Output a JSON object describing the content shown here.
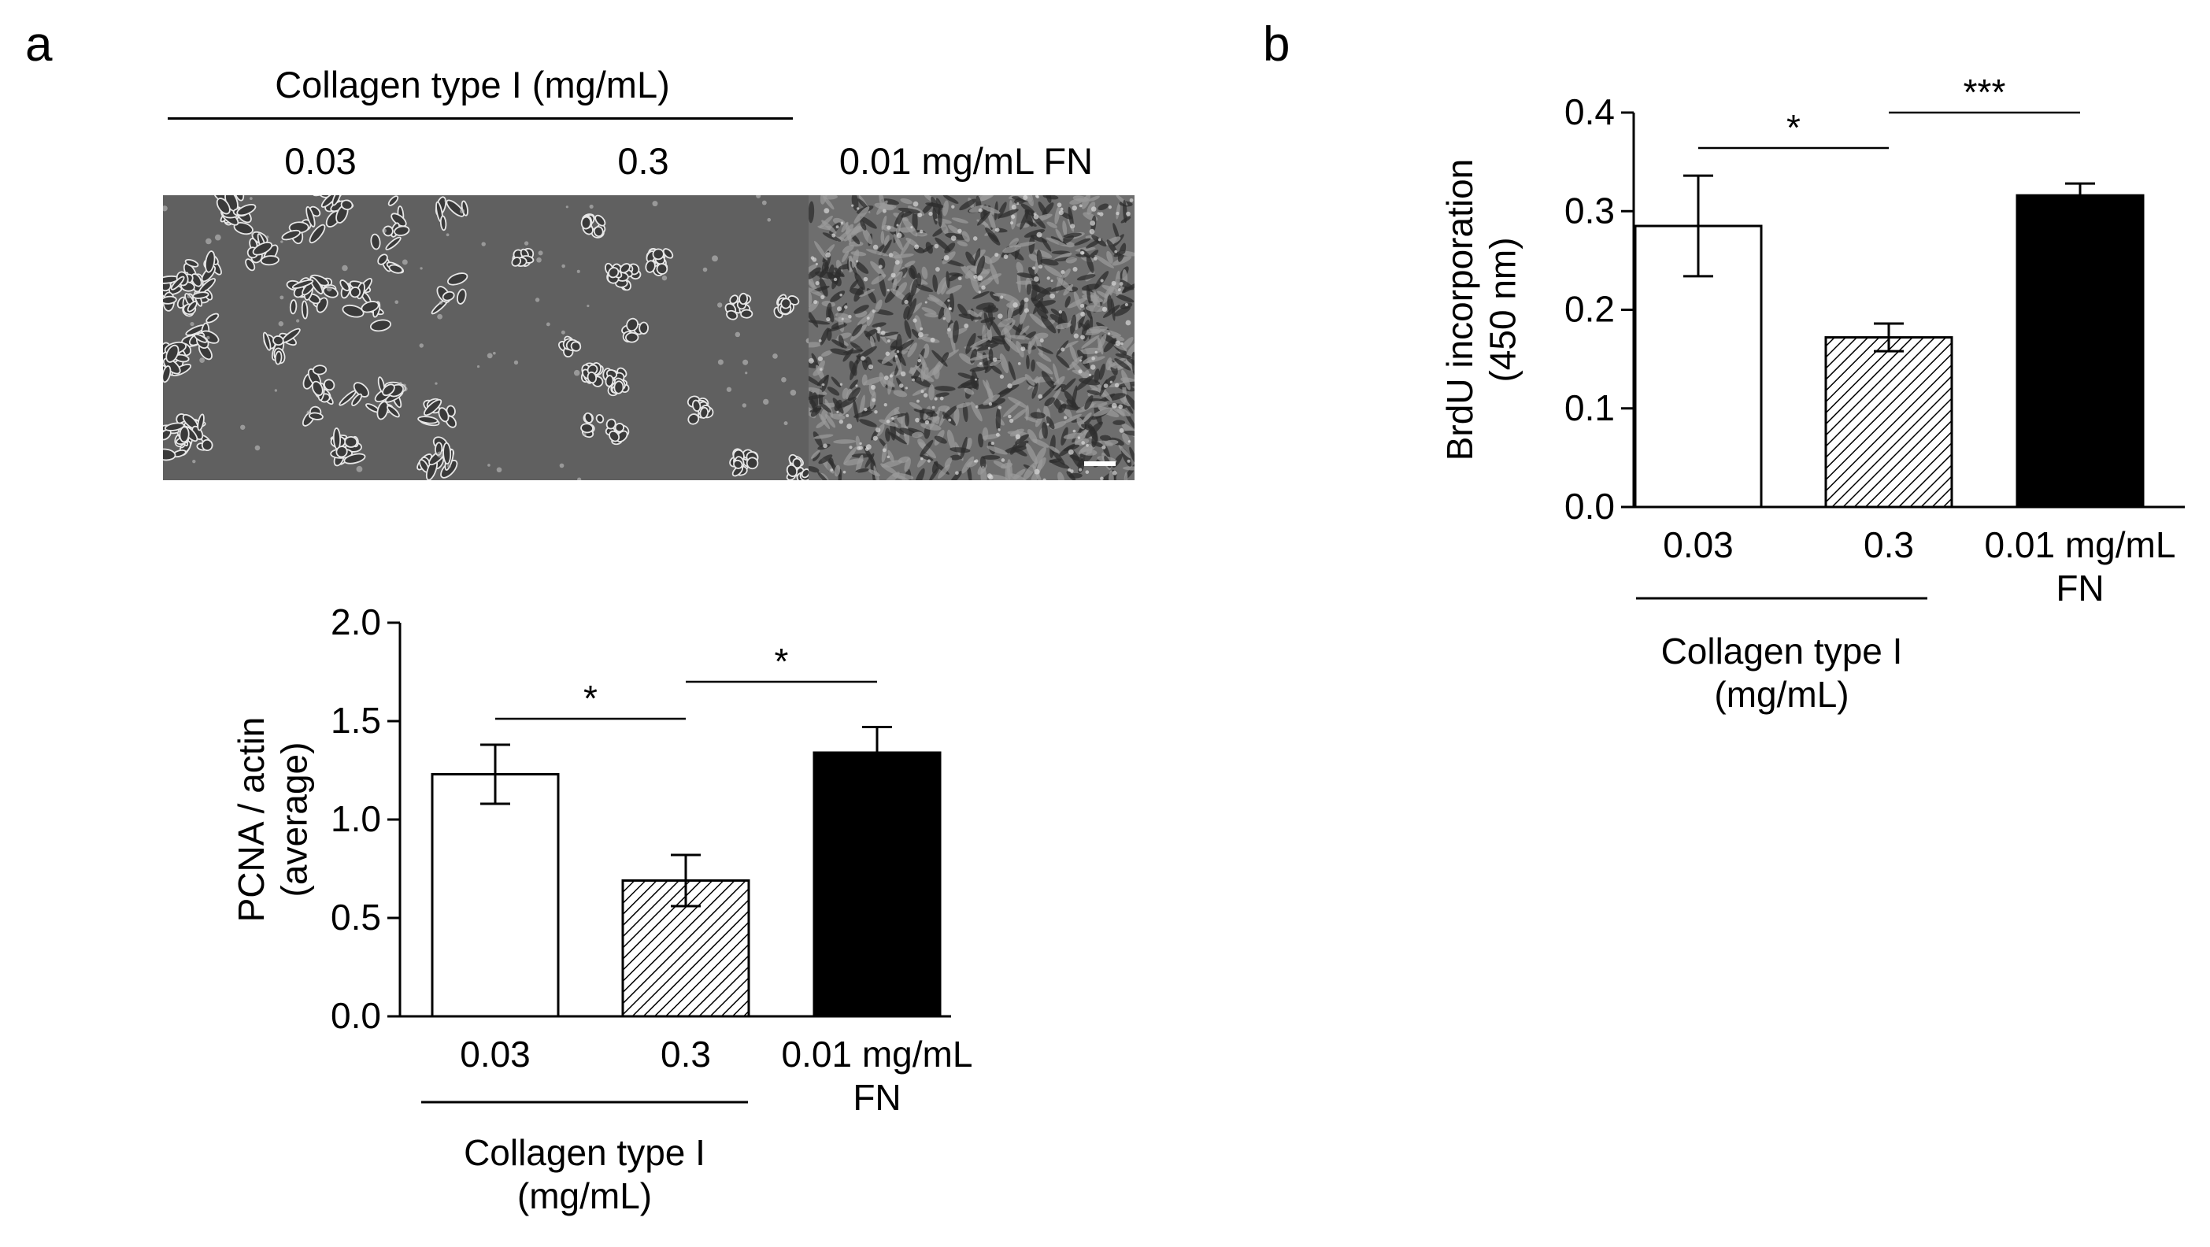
{
  "panel_a": {
    "letter": "a",
    "header": "Collagen type I (mg/mL)",
    "image_labels": [
      "0.03",
      "0.3",
      "0.01 mg/mL FN"
    ],
    "images": [
      {
        "name": "micrograph-collagen-0.03",
        "content": "sparse cell clusters"
      },
      {
        "name": "micrograph-collagen-0.3",
        "content": "small rounded cell clusters"
      },
      {
        "name": "micrograph-fn-0.01",
        "content": "dense confluent cell monolayer with scale bar"
      }
    ]
  },
  "panel_b": {
    "letter": "b"
  },
  "colors": {
    "bar_open": "#ffffff",
    "bar_solid": "#000000",
    "stroke": "#000000",
    "hatch": "#000000"
  },
  "chart_data": [
    {
      "id": "pcna",
      "type": "bar",
      "categories": [
        "0.03",
        "0.3",
        "0.01 mg/mL FN"
      ],
      "category_label_lines": [
        [
          "0.03"
        ],
        [
          "0.3"
        ],
        [
          "0.01 mg/mL",
          "FN"
        ]
      ],
      "values": [
        1.23,
        0.69,
        1.34
      ],
      "errors": [
        0.15,
        0.13,
        0.13
      ],
      "fills": [
        "open",
        "hatched",
        "solid"
      ],
      "ylabel_lines": [
        "PCNA / actin",
        "(average)"
      ],
      "ylim": [
        0,
        2.0
      ],
      "yticks": [
        "0.0",
        "0.5",
        "1.0",
        "1.5",
        "2.0"
      ],
      "group_label_lines": [
        "Collagen type I",
        "(mg/mL)"
      ],
      "significance": [
        {
          "from": 0,
          "to": 1,
          "label": "*"
        },
        {
          "from": 1,
          "to": 2,
          "label": "*"
        }
      ]
    },
    {
      "id": "brdu",
      "type": "bar",
      "categories": [
        "0.03",
        "0.3",
        "0.01 mg/mL FN"
      ],
      "category_label_lines": [
        [
          "0.03"
        ],
        [
          "0.3"
        ],
        [
          "0.01 mg/mL",
          "FN"
        ]
      ],
      "values": [
        0.285,
        0.172,
        0.316
      ],
      "errors": [
        0.051,
        0.014,
        0.012
      ],
      "fills": [
        "open",
        "hatched",
        "solid"
      ],
      "ylabel_lines": [
        "BrdU incorporation",
        "(450 nm)"
      ],
      "ylim": [
        0,
        0.4
      ],
      "yticks": [
        "0.0",
        "0.1",
        "0.2",
        "0.3",
        "0.4"
      ],
      "group_label_lines": [
        "Collagen type I",
        "(mg/mL)"
      ],
      "significance": [
        {
          "from": 0,
          "to": 1,
          "label": "*"
        },
        {
          "from": 1,
          "to": 2,
          "label": "***"
        }
      ]
    }
  ]
}
